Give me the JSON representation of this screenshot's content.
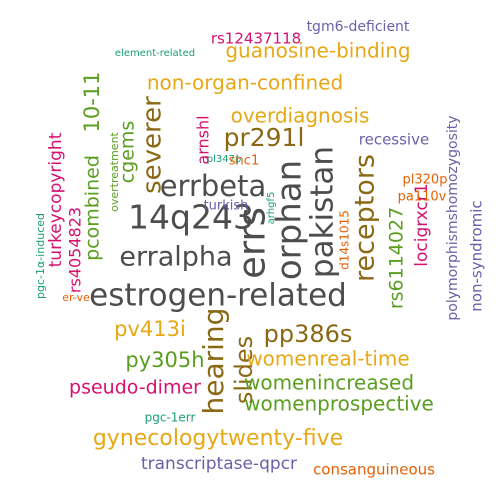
{
  "words": [
    {
      "text": "estrogen-related",
      "color": "#4d4d4d"
    },
    {
      "text": "14q243",
      "color": "#4d4d4d"
    },
    {
      "text": "errbeta",
      "color": "#4d4d4d"
    },
    {
      "text": "erralpha",
      "color": "#4d4d4d"
    },
    {
      "text": "errs",
      "color": "#4d4d4d"
    },
    {
      "text": "orphan",
      "color": "#4d4d4d"
    },
    {
      "text": "pakistan",
      "color": "#4d4d4d"
    },
    {
      "text": "receptors",
      "color": "#8b6914"
    },
    {
      "text": "guanosine-binding",
      "color": "#e6a817"
    },
    {
      "text": "non-organ-confined",
      "color": "#e6a817"
    },
    {
      "text": "overdiagnosis",
      "color": "#e6a817"
    },
    {
      "text": "pr291l",
      "color": "#8b6914"
    },
    {
      "text": "severer",
      "color": "#8b6914"
    },
    {
      "text": "pv413i",
      "color": "#e6a817"
    },
    {
      "text": "pp386s",
      "color": "#8b6914"
    },
    {
      "text": "hearing",
      "color": "#8b6914"
    },
    {
      "text": "slides",
      "color": "#8b6914"
    },
    {
      "text": "py305h",
      "color": "#5a9e1f"
    },
    {
      "text": "womenreal-time",
      "color": "#e6a817"
    },
    {
      "text": "womenincreased",
      "color": "#5a9e1f"
    },
    {
      "text": "womenprospective",
      "color": "#5a9e1f"
    },
    {
      "text": "gynecologytwenty-five",
      "color": "#e6a817"
    },
    {
      "text": "pseudo-dimer",
      "color": "#d6106f"
    },
    {
      "text": "rs12437118",
      "color": "#d6106f"
    },
    {
      "text": "tgm6-deficient",
      "color": "#6b5fa8"
    },
    {
      "text": "element-related",
      "color": "#1b9e77"
    },
    {
      "text": "10-11",
      "color": "#5a9e1f"
    },
    {
      "text": "cgems",
      "color": "#5a9e1f"
    },
    {
      "text": "pcombined",
      "color": "#5a9e1f"
    },
    {
      "text": "turkeycopyright",
      "color": "#d6106f"
    },
    {
      "text": "rs4054823",
      "color": "#d6106f"
    },
    {
      "text": "overtreatment",
      "color": "#5a9e1f"
    },
    {
      "text": "pl347p",
      "color": "#1b9e77"
    },
    {
      "text": "arnshl",
      "color": "#d6106f"
    },
    {
      "text": "shc1",
      "color": "#e65f00"
    },
    {
      "text": "turkish",
      "color": "#6b5fa8"
    },
    {
      "text": "arhgf5",
      "color": "#1b9e77"
    },
    {
      "text": "d14s1015",
      "color": "#e65f00"
    },
    {
      "text": "recessive",
      "color": "#6b5fa8"
    },
    {
      "text": "rs6114027",
      "color": "#5a9e1f"
    },
    {
      "text": "locigrxcr1",
      "color": "#d6106f"
    },
    {
      "text": "pl320p",
      "color": "#e65f00"
    },
    {
      "text": "pa110v",
      "color": "#e65f00"
    },
    {
      "text": "polymorphismshomozygosity",
      "color": "#6b5fa8"
    },
    {
      "text": "non-syndromic",
      "color": "#6b5fa8"
    },
    {
      "text": "pgc-1α-induced",
      "color": "#1b9e77"
    },
    {
      "text": "er-ve",
      "color": "#e65f00"
    },
    {
      "text": "pgc-1err",
      "color": "#1b9e77"
    },
    {
      "text": "transcriptase-qpcr",
      "color": "#6b5fa8"
    },
    {
      "text": "consanguineous",
      "color": "#e65f00"
    }
  ]
}
